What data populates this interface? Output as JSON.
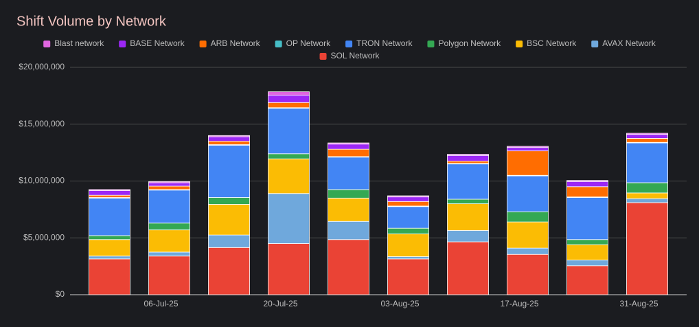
{
  "chart_data": {
    "type": "stacked-bar",
    "title": "Shift Volume by Network",
    "categories": [
      null,
      "06-Jul-25",
      null,
      "20-Jul-25",
      null,
      "03-Aug-25",
      null,
      "17-Aug-25",
      null,
      "31-Aug-25"
    ],
    "series": [
      {
        "name": "SOL Network",
        "color": "#ea4335",
        "values": [
          3150000,
          3400000,
          4150000,
          4500000,
          4850000,
          3150000,
          4650000,
          3550000,
          2550000,
          8100000
        ]
      },
      {
        "name": "AVAX Network",
        "color": "#6fa8dc",
        "values": [
          250000,
          350000,
          1100000,
          4400000,
          1600000,
          200000,
          1000000,
          550000,
          500000,
          350000
        ]
      },
      {
        "name": "BSC Network",
        "color": "#fbbc04",
        "values": [
          1450000,
          1950000,
          2700000,
          3050000,
          2050000,
          2000000,
          2350000,
          2300000,
          1350000,
          500000
        ]
      },
      {
        "name": "Polygon Network",
        "color": "#34a853",
        "values": [
          350000,
          600000,
          600000,
          450000,
          750000,
          500000,
          400000,
          900000,
          450000,
          900000
        ]
      },
      {
        "name": "TRON Network",
        "color": "#4285f4",
        "values": [
          3300000,
          2900000,
          4600000,
          4000000,
          2850000,
          1900000,
          3100000,
          3150000,
          3700000,
          3500000
        ]
      },
      {
        "name": "OP Network",
        "color": "#46bdc6",
        "values": [
          50000,
          50000,
          50000,
          50000,
          50000,
          50000,
          50000,
          50000,
          50000,
          50000
        ]
      },
      {
        "name": "ARB Network",
        "color": "#ff6d01",
        "values": [
          200000,
          300000,
          300000,
          450000,
          650000,
          400000,
          200000,
          2150000,
          900000,
          350000
        ]
      },
      {
        "name": "BASE Network",
        "color": "#9c27f5",
        "values": [
          400000,
          300000,
          400000,
          650000,
          450000,
          400000,
          500000,
          300000,
          450000,
          350000
        ]
      },
      {
        "name": "Blast network",
        "color": "#e066e0",
        "values": [
          100000,
          100000,
          100000,
          300000,
          100000,
          100000,
          100000,
          100000,
          100000,
          100000
        ]
      }
    ],
    "legend_order": [
      8,
      7,
      6,
      5,
      4,
      3,
      2,
      1,
      0
    ],
    "ylim": [
      0,
      20000000
    ],
    "yticks": [
      {
        "value": 0,
        "label": "$0"
      },
      {
        "value": 5000000,
        "label": "$5,000,000"
      },
      {
        "value": 10000000,
        "label": "$10,000,000"
      },
      {
        "value": 15000000,
        "label": "$15,000,000"
      },
      {
        "value": 20000000,
        "label": "$20,000,000"
      }
    ],
    "grid": true
  }
}
